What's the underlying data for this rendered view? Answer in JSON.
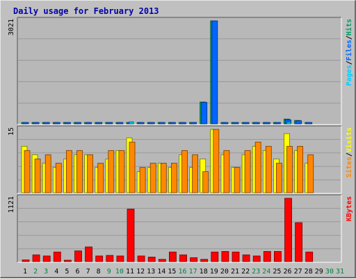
{
  "title": "Daily usage for February 2013",
  "colors": {
    "panel_bg": "#b8b8b8",
    "gridline": "#999999",
    "pages": "#00ccff",
    "files": "#0066ff",
    "hits": "#009966",
    "sites": "#ff8800",
    "visits": "#ffff00",
    "kbytes": "#ff0000",
    "weekend": "#008040",
    "weekday": "#000000"
  },
  "legends": {
    "top": [
      "Pages",
      "/",
      "Files",
      "/",
      "Hits"
    ],
    "middle": [
      "Sites",
      "/",
      "Visits"
    ],
    "bottom": [
      "KBytes"
    ]
  },
  "chart_data": [
    {
      "type": "bar",
      "name": "hits-files-pages",
      "categories": [
        "1",
        "2",
        "3",
        "4",
        "5",
        "6",
        "7",
        "8",
        "9",
        "10",
        "11",
        "12",
        "13",
        "14",
        "15",
        "16",
        "17",
        "18",
        "19",
        "20",
        "21",
        "22",
        "23",
        "24",
        "25",
        "26",
        "27",
        "28",
        "29",
        "30",
        "31"
      ],
      "ylabel": "3021",
      "ylim": [
        0,
        3021
      ],
      "series": [
        {
          "name": "Hits",
          "values": [
            40,
            30,
            30,
            30,
            30,
            40,
            30,
            30,
            40,
            40,
            40,
            30,
            30,
            30,
            30,
            30,
            30,
            640,
            3021,
            30,
            30,
            30,
            40,
            40,
            40,
            140,
            100,
            40,
            0,
            0,
            0
          ]
        },
        {
          "name": "Files",
          "values": [
            35,
            25,
            25,
            25,
            25,
            35,
            25,
            25,
            35,
            35,
            35,
            25,
            25,
            25,
            25,
            25,
            25,
            630,
            3021,
            25,
            25,
            25,
            35,
            35,
            35,
            120,
            90,
            35,
            0,
            0,
            0
          ]
        },
        {
          "name": "Pages",
          "values": [
            0,
            0,
            0,
            0,
            0,
            0,
            0,
            0,
            0,
            0,
            60,
            0,
            0,
            0,
            0,
            0,
            0,
            0,
            0,
            0,
            0,
            0,
            0,
            0,
            0,
            50,
            0,
            0,
            0,
            0,
            0
          ]
        }
      ]
    },
    {
      "type": "bar",
      "name": "visits-sites",
      "categories": [
        "1",
        "2",
        "3",
        "4",
        "5",
        "6",
        "7",
        "8",
        "9",
        "10",
        "11",
        "12",
        "13",
        "14",
        "15",
        "16",
        "17",
        "18",
        "19",
        "20",
        "21",
        "22",
        "23",
        "24",
        "25",
        "26",
        "27",
        "28",
        "29",
        "30",
        "31"
      ],
      "ylabel": "15",
      "ylim": [
        0,
        15
      ],
      "series": [
        {
          "name": "Visits",
          "values": [
            11,
            9,
            7,
            6,
            8,
            9,
            9,
            6,
            8,
            10,
            13,
            5,
            6,
            7,
            6,
            9,
            6,
            8,
            15,
            9,
            6,
            9,
            11,
            10,
            8,
            14,
            10,
            7,
            0,
            0,
            0
          ]
        },
        {
          "name": "Sites",
          "values": [
            10,
            8,
            9,
            7,
            10,
            10,
            9,
            7,
            10,
            10,
            12,
            6,
            7,
            7,
            7,
            10,
            9,
            5,
            15,
            10,
            6,
            10,
            12,
            11,
            7,
            11,
            11,
            9,
            0,
            0,
            0
          ]
        }
      ]
    },
    {
      "type": "bar",
      "name": "kbytes",
      "categories": [
        "1",
        "2",
        "3",
        "4",
        "5",
        "6",
        "7",
        "8",
        "9",
        "10",
        "11",
        "12",
        "13",
        "14",
        "15",
        "16",
        "17",
        "18",
        "19",
        "20",
        "21",
        "22",
        "23",
        "24",
        "25",
        "26",
        "27",
        "28",
        "29",
        "30",
        "31"
      ],
      "ylabel": "1121",
      "ylim": [
        0,
        1121
      ],
      "series": [
        {
          "name": "KBytes",
          "values": [
            30,
            120,
            100,
            170,
            10,
            190,
            260,
            100,
            110,
            100,
            930,
            100,
            80,
            40,
            170,
            120,
            70,
            40,
            170,
            180,
            170,
            120,
            100,
            180,
            180,
            1121,
            690,
            170,
            0,
            0,
            0
          ]
        }
      ]
    }
  ],
  "weekend_days": [
    2,
    3,
    9,
    10,
    16,
    17,
    23,
    24,
    30,
    31
  ]
}
